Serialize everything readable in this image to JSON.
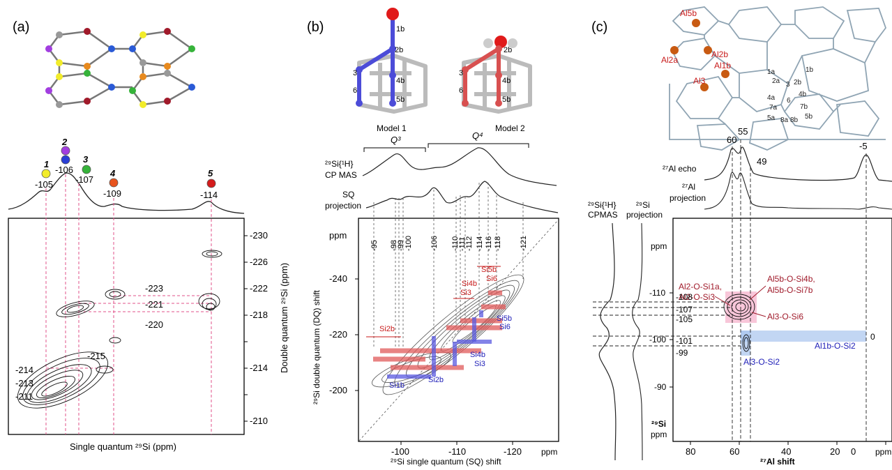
{
  "panels": {
    "a": {
      "label": "(a)",
      "sites": [
        {
          "n": "1",
          "shift": "-105",
          "color": "#f2ec2a"
        },
        {
          "n": "2",
          "shift": "-106",
          "color": "#a23ee0",
          "color2": "#2a3fd6"
        },
        {
          "n": "3",
          "shift": "-107",
          "color": "#36b33a"
        },
        {
          "n": "4",
          "shift": "-109",
          "color": "#e8541e"
        },
        {
          "n": "5",
          "shift": "-114",
          "color": "#d41c1c"
        }
      ],
      "dq_labels": [
        "-223",
        "-221",
        "-220",
        "-215",
        "-214",
        "-213",
        "-211"
      ],
      "y_ticks": [
        "-230",
        "-226",
        "-222",
        "-218",
        "-214",
        "-210"
      ],
      "y_axis_label": "Double quantum ²⁹Si (ppm)",
      "x_axis_label": "Single quantum ²⁹Si (ppm)"
    },
    "b": {
      "label": "(b)",
      "models": [
        "Model 1",
        "Model 2"
      ],
      "model_atoms_1": [
        "1b",
        "2b",
        "3",
        "6",
        "4b",
        "5b"
      ],
      "model_atoms_2": [
        "2b",
        "3",
        "6",
        "4b",
        "5b"
      ],
      "group_q3": "Q³",
      "group_q4": "Q⁴",
      "trace_cp_line1": "²⁹Si{¹H}",
      "trace_cp_line2": "CP MAS",
      "trace_sq_line1": "SQ",
      "trace_sq_line2": "projection",
      "shift_ticks": [
        "-95",
        "-98",
        "-99",
        "-100",
        "-106",
        "-110",
        "-111",
        "-112",
        "-114",
        "-116",
        "-118",
        "-121"
      ],
      "ppm": "ppm",
      "y_ticks": [
        "-240",
        "-220",
        "-200"
      ],
      "x_ticks": [
        "-100",
        "-110",
        "-120"
      ],
      "red_labels": [
        "Si5b",
        "Si6",
        "Si4b",
        "Si3",
        "Si2b"
      ],
      "blue_labels": [
        "Si5b",
        "Si6",
        "Si4b",
        "Si3",
        "Si1b",
        "Si2b"
      ],
      "y_axis_label": "²⁹Si double quantum (DQ) shift",
      "x_axis_label": "²⁹Si single quantum (SQ) shift"
    },
    "c": {
      "label": "(c)",
      "al_sites": [
        "Al5b",
        "Al2a",
        "Al2b",
        "Al1b",
        "Al3"
      ],
      "si_site_labels": [
        "1b",
        "1a",
        "2a",
        "2b",
        "3",
        "4a",
        "4b",
        "6",
        "7a",
        "7b",
        "5a",
        "8a",
        "8b",
        "5b"
      ],
      "echo_peaks": [
        "60",
        "55",
        "49",
        "-5"
      ],
      "echo_label": "²⁷Al echo",
      "proj_label_line1": "²⁷Al",
      "proj_label_line2": "projection",
      "left_trace_1a": "²⁹Si{¹H}",
      "left_trace_1b": "CPMAS",
      "left_trace_2a": "²⁹Si",
      "left_trace_2b": "projection",
      "ppm": "ppm",
      "y_ticks": [
        "-110",
        "-100",
        "-90"
      ],
      "si_shifts": [
        "-108",
        "-107",
        "-105",
        "-101",
        "-99"
      ],
      "zero": "0",
      "x_ticks": [
        "80",
        "60",
        "40",
        "20",
        "0"
      ],
      "x_ppm": "ppm",
      "y_axis_label_si": "²⁹Si",
      "y_axis_label_ppm": "ppm",
      "x_axis_label": "²⁷Al shift",
      "correlations": [
        "Al2-O-Si1a,",
        "Al2-O-Si3",
        "Al5b-O-Si4b,",
        "Al5b-O-Si7b",
        "Al3-O-Si6",
        "Al1b-O-Si2",
        "Al3-O-Si2"
      ]
    }
  }
}
